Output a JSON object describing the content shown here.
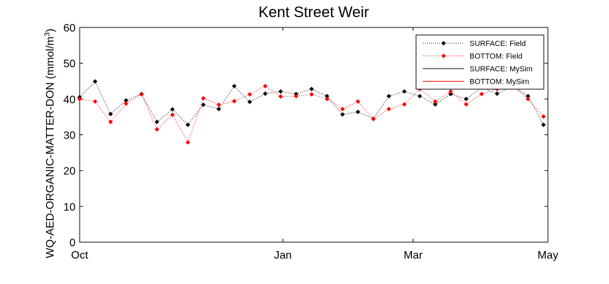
{
  "chart_data": {
    "type": "line",
    "title": "Kent Street Weir",
    "ylabel": "WQ-AED-ORGANIC-MATTER-DON (mmol/m",
    "ylabel_sup": "3",
    "ylabel_close": ")",
    "xlabel": "",
    "xlim": [
      "2000-10-01",
      "2001-05-01"
    ],
    "ylim": [
      0,
      60
    ],
    "xticks": [
      {
        "date": "2000-10-01",
        "label": "Oct"
      },
      {
        "date": "2001-01-01",
        "label": "Jan"
      },
      {
        "date": "2001-03-01",
        "label": "Mar"
      },
      {
        "date": "2001-05-01",
        "label": "May"
      }
    ],
    "yticks": [
      0,
      10,
      20,
      30,
      40,
      50,
      60
    ],
    "grid": false,
    "legend_position": "top-right",
    "series": [
      {
        "name": "SURFACE: Field",
        "color": "#000000",
        "line": "dotted",
        "marker": "diamond",
        "points": [
          [
            "2000-10-01",
            40.5
          ],
          [
            "2000-10-08",
            44.9
          ],
          [
            "2000-10-15",
            35.8
          ],
          [
            "2000-10-22",
            39.6
          ],
          [
            "2000-10-29",
            41.4
          ],
          [
            "2000-11-05",
            33.6
          ],
          [
            "2000-11-12",
            37.1
          ],
          [
            "2000-11-19",
            32.8
          ],
          [
            "2000-11-26",
            38.4
          ],
          [
            "2000-12-03",
            37.2
          ],
          [
            "2000-12-10",
            43.6
          ],
          [
            "2000-12-17",
            39.2
          ],
          [
            "2000-12-24",
            41.5
          ],
          [
            "2000-12-31",
            42.1
          ],
          [
            "2001-01-07",
            41.4
          ],
          [
            "2001-01-14",
            42.8
          ],
          [
            "2001-01-21",
            40.8
          ],
          [
            "2001-01-28",
            35.7
          ],
          [
            "2001-02-04",
            36.4
          ],
          [
            "2001-02-11",
            34.5
          ],
          [
            "2001-02-18",
            40.8
          ],
          [
            "2001-02-25",
            42.1
          ],
          [
            "2001-03-04",
            40.8
          ],
          [
            "2001-03-11",
            38.5
          ],
          [
            "2001-03-18",
            41.4
          ],
          [
            "2001-03-25",
            40.0
          ],
          [
            "2001-04-01",
            43.2
          ],
          [
            "2001-04-08",
            41.5
          ],
          [
            "2001-04-15",
            43.5
          ],
          [
            "2001-04-22",
            40.8
          ],
          [
            "2001-04-29",
            32.8
          ]
        ]
      },
      {
        "name": "BOTTOM: Field",
        "color": "#ff0000",
        "line": "dotted",
        "marker": "diamond",
        "points": [
          [
            "2000-10-01",
            40.0
          ],
          [
            "2000-10-08",
            39.3
          ],
          [
            "2000-10-15",
            33.6
          ],
          [
            "2000-10-22",
            38.7
          ],
          [
            "2000-10-29",
            41.3
          ],
          [
            "2000-11-05",
            31.5
          ],
          [
            "2000-11-12",
            35.6
          ],
          [
            "2000-11-19",
            27.9
          ],
          [
            "2000-11-26",
            40.2
          ],
          [
            "2000-12-03",
            38.4
          ],
          [
            "2000-12-10",
            39.4
          ],
          [
            "2000-12-17",
            41.3
          ],
          [
            "2000-12-24",
            43.6
          ],
          [
            "2000-12-31",
            40.7
          ],
          [
            "2001-01-07",
            40.8
          ],
          [
            "2001-01-14",
            41.3
          ],
          [
            "2001-01-21",
            40.0
          ],
          [
            "2001-01-28",
            37.2
          ],
          [
            "2001-02-04",
            39.3
          ],
          [
            "2001-02-11",
            34.4
          ],
          [
            "2001-02-18",
            37.2
          ],
          [
            "2001-02-25",
            38.5
          ],
          [
            "2001-03-04",
            42.8
          ],
          [
            "2001-03-11",
            39.3
          ],
          [
            "2001-03-18",
            42.1
          ],
          [
            "2001-03-25",
            38.5
          ],
          [
            "2001-04-01",
            41.4
          ],
          [
            "2001-04-08",
            42.8
          ],
          [
            "2001-04-15",
            43.8
          ],
          [
            "2001-04-22",
            40.0
          ],
          [
            "2001-04-29",
            35.1
          ]
        ]
      },
      {
        "name": "SURFACE: MySim",
        "color": "#000000",
        "line": "solid",
        "marker": "none",
        "points": []
      },
      {
        "name": "BOTTOM: MySim",
        "color": "#ff0000",
        "line": "solid",
        "marker": "none",
        "points": []
      }
    ]
  }
}
